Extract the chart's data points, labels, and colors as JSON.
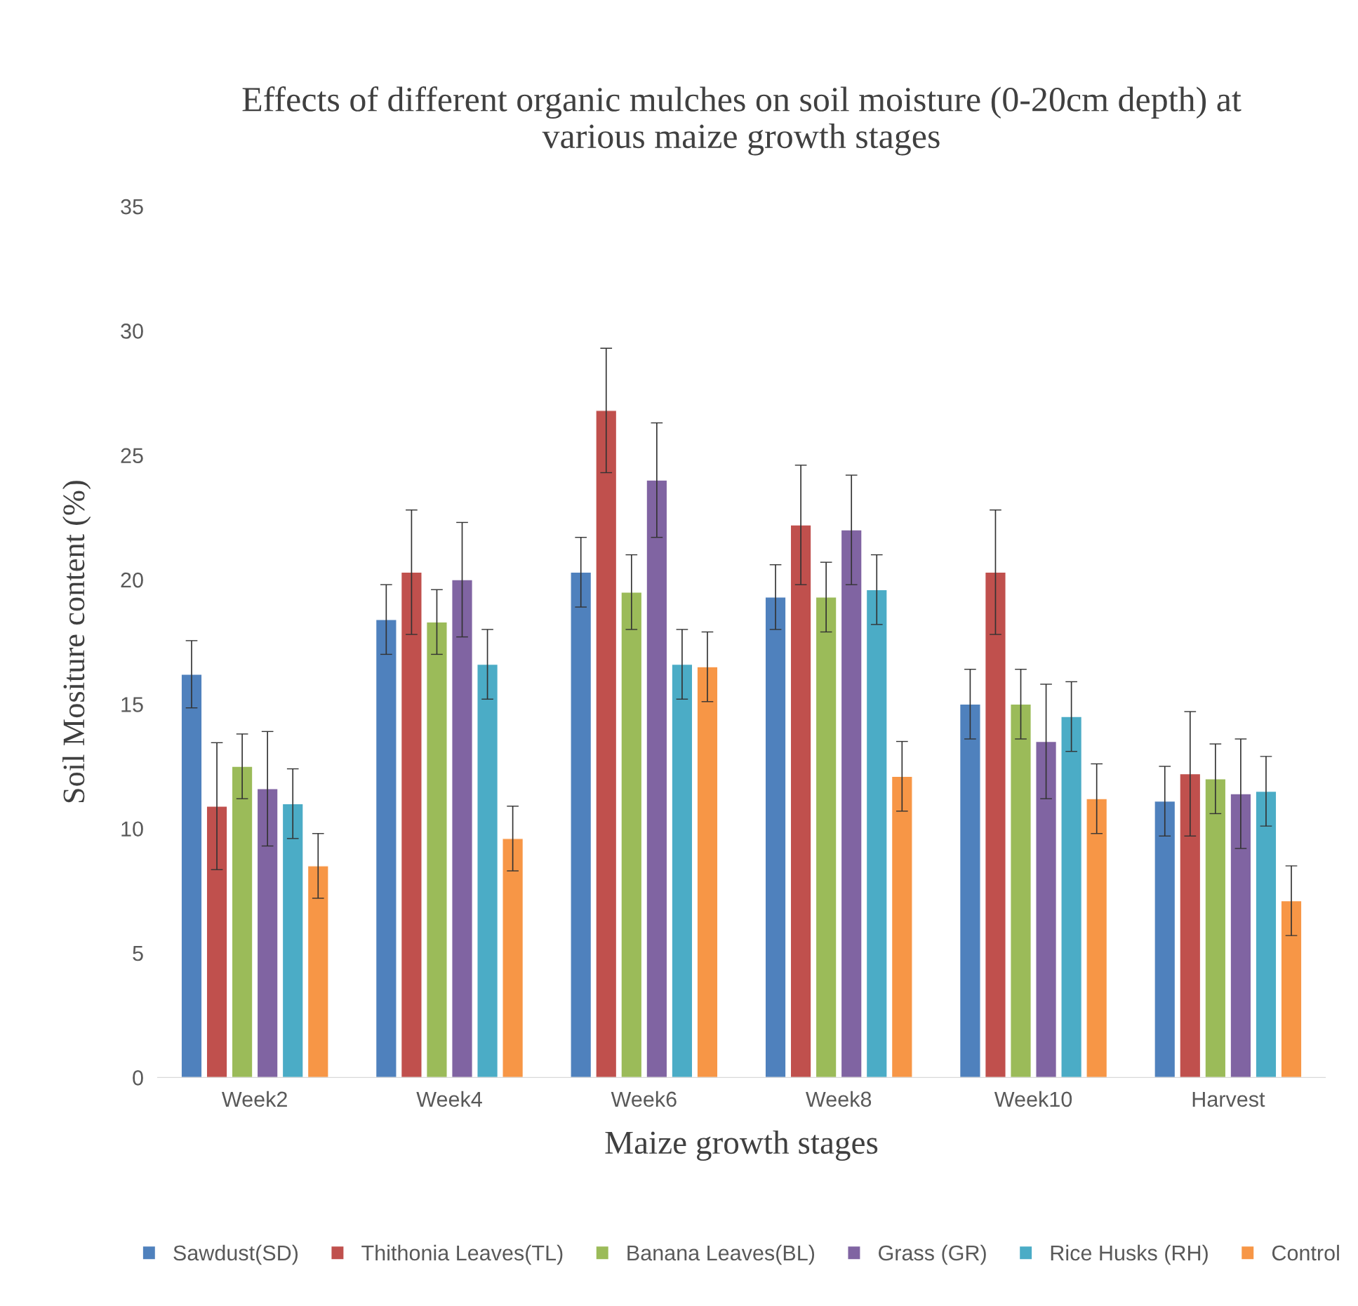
{
  "chart_data": {
    "type": "bar",
    "title": "Effects of different organic mulches on soil moisture (0-20cm depth) at\nvarious maize growth stages",
    "xlabel": "Maize growth stages",
    "ylabel": "Soil Mositure content (%)",
    "categories": [
      "Week2",
      "Week4",
      "Week6",
      "Week8",
      "Week10",
      "Harvest"
    ],
    "series": [
      {
        "name": "Sawdust(SD)",
        "color": "#4f81bd",
        "values": [
          16.2,
          18.4,
          20.3,
          19.3,
          15.0,
          11.1
        ],
        "errors": [
          1.35,
          1.4,
          1.4,
          1.3,
          1.4,
          1.4
        ]
      },
      {
        "name": "Thithonia Leaves(TL)",
        "color": "#c0504d",
        "values": [
          10.9,
          20.3,
          26.8,
          22.2,
          20.3,
          12.2
        ],
        "errors": [
          2.55,
          2.5,
          2.5,
          2.4,
          2.5,
          2.5
        ]
      },
      {
        "name": "Banana Leaves(BL)",
        "color": "#9bbb59",
        "values": [
          12.5,
          18.3,
          19.5,
          19.3,
          15.0,
          12.0
        ],
        "errors": [
          1.3,
          1.3,
          1.5,
          1.4,
          1.4,
          1.4
        ]
      },
      {
        "name": "Grass (GR)",
        "color": "#8064a2",
        "values": [
          11.6,
          20.0,
          24.0,
          22.0,
          13.5,
          11.4
        ],
        "errors": [
          2.3,
          2.3,
          2.3,
          2.2,
          2.3,
          2.2
        ]
      },
      {
        "name": "Rice Husks (RH)",
        "color": "#4bacc6",
        "values": [
          11.0,
          16.6,
          16.6,
          19.6,
          14.5,
          11.5
        ],
        "errors": [
          1.4,
          1.4,
          1.4,
          1.4,
          1.4,
          1.4
        ]
      },
      {
        "name": "Control",
        "color": "#f79646",
        "values": [
          8.5,
          9.6,
          16.5,
          12.1,
          11.2,
          7.1
        ],
        "errors": [
          1.3,
          1.3,
          1.4,
          1.4,
          1.4,
          1.4
        ]
      }
    ],
    "ylim": [
      0,
      35
    ],
    "yticks": [
      0,
      5,
      10,
      15,
      20,
      25,
      30,
      35
    ],
    "grid": false,
    "legend": "bottom"
  }
}
